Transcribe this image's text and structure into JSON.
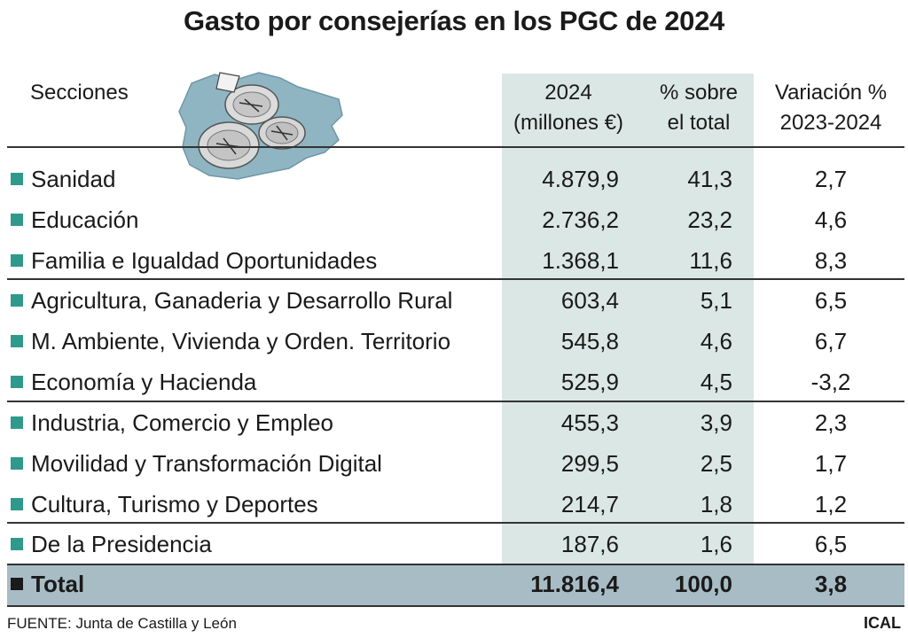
{
  "title": "Gasto por consejerías en los PGC de 2024",
  "header": {
    "secciones": "Secciones",
    "col1": [
      "2024",
      "(millones €)"
    ],
    "col2": [
      "% sobre",
      "el total"
    ],
    "col3": [
      "Variación %",
      "2023-2024"
    ]
  },
  "colors": {
    "highlight_column": "#dbe7e4",
    "total_band": "#a8bcc5",
    "bullet": "#2f9a8c"
  },
  "chart_data": {
    "type": "table",
    "title": "Gasto por consejerías en los PGC de 2024",
    "columns": [
      "Secciones",
      "2024 (millones €)",
      "% sobre el total",
      "Variación % 2023-2024"
    ],
    "rows": [
      {
        "section": "Sanidad",
        "amount": "4.879,9",
        "share": "41,3",
        "variation": "2,7"
      },
      {
        "section": "Educación",
        "amount": "2.736,2",
        "share": "23,2",
        "variation": "4,6"
      },
      {
        "section": "Familia e Igualdad Oportunidades",
        "amount": "1.368,1",
        "share": "11,6",
        "variation": "8,3"
      },
      {
        "section": "Agricultura, Ganaderia y Desarrollo Rural",
        "amount": "603,4",
        "share": "5,1",
        "variation": "6,5"
      },
      {
        "section": "M. Ambiente, Vivienda y Orden. Territorio",
        "amount": "545,8",
        "share": "4,6",
        "variation": "6,7"
      },
      {
        "section": "Economía y Hacienda",
        "amount": "525,9",
        "share": "4,5",
        "variation": "-3,2"
      },
      {
        "section": "Industria, Comercio y Empleo",
        "amount": "455,3",
        "share": "3,9",
        "variation": "2,3"
      },
      {
        "section": "Movilidad y Transformación Digital",
        "amount": "299,5",
        "share": "2,5",
        "variation": "1,7"
      },
      {
        "section": "Cultura, Turismo y Deportes",
        "amount": "214,7",
        "share": "1,8",
        "variation": "1,2"
      },
      {
        "section": "De la Presidencia",
        "amount": "187,6",
        "share": "1,6",
        "variation": "6,5"
      }
    ],
    "total": {
      "section": "Total",
      "amount": "11.816,4",
      "share": "100,0",
      "variation": "3,8"
    }
  },
  "footer": {
    "source": "FUENTE: Junta de Castilla y León",
    "brand": "ICAL"
  }
}
